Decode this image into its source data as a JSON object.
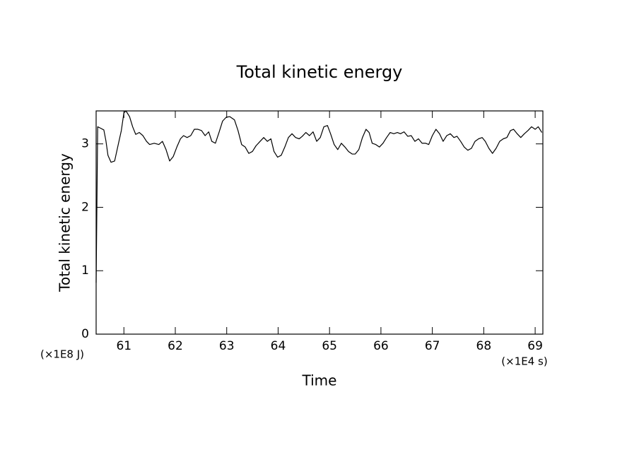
{
  "chart_data": {
    "type": "line",
    "title": "Total kinetic energy",
    "x_label": "Time",
    "y_label": "Total kinetic energy",
    "x_unit_label": "(×1E4 s)",
    "y_unit_label": "(×1E8 J)",
    "xlim": [
      60.46,
      69.15
    ],
    "ylim": [
      0,
      3.52
    ],
    "xticks": [
      61,
      62,
      63,
      64,
      65,
      66,
      67,
      68,
      69
    ],
    "yticks": [
      0,
      1,
      2,
      3
    ],
    "series": [
      {
        "color": "#000000",
        "x": [
          60.46,
          60.49,
          60.54,
          60.61,
          60.65,
          60.69,
          60.75,
          60.82,
          60.89,
          60.95,
          61.0,
          61.04,
          61.11,
          61.17,
          61.23,
          61.3,
          61.37,
          61.44,
          61.5,
          61.59,
          61.68,
          61.75,
          61.82,
          61.89,
          61.96,
          62.03,
          62.1,
          62.16,
          62.23,
          62.3,
          62.37,
          62.44,
          62.51,
          62.58,
          62.65,
          62.71,
          62.78,
          62.85,
          62.92,
          62.99,
          63.06,
          63.15,
          63.22,
          63.29,
          63.36,
          63.43,
          63.5,
          63.57,
          63.65,
          63.72,
          63.79,
          63.86,
          63.92,
          63.99,
          64.06,
          64.13,
          64.2,
          64.27,
          64.34,
          64.41,
          64.47,
          64.54,
          64.61,
          64.68,
          64.75,
          64.82,
          64.89,
          64.96,
          65.02,
          65.09,
          65.16,
          65.23,
          65.3,
          65.37,
          65.44,
          65.5,
          65.57,
          65.64,
          65.71,
          65.77,
          65.83,
          65.9,
          65.97,
          66.04,
          66.11,
          66.18,
          66.25,
          66.32,
          66.38,
          66.45,
          66.52,
          66.59,
          66.66,
          66.73,
          66.8,
          66.87,
          66.93,
          67.0,
          67.07,
          67.14,
          67.21,
          67.28,
          67.35,
          67.42,
          67.48,
          67.55,
          67.62,
          67.69,
          67.76,
          67.83,
          67.9,
          67.97,
          68.03,
          68.1,
          68.17,
          68.24,
          68.31,
          68.38,
          68.45,
          68.52,
          68.58,
          68.65,
          68.72,
          68.79,
          68.86,
          68.93,
          69.0,
          69.06,
          69.13
        ],
        "values": [
          0.81,
          3.27,
          3.25,
          3.22,
          3.05,
          2.82,
          2.71,
          2.73,
          2.99,
          3.21,
          3.49,
          3.52,
          3.43,
          3.27,
          3.15,
          3.18,
          3.13,
          3.04,
          2.99,
          3.01,
          2.99,
          3.04,
          2.91,
          2.73,
          2.8,
          2.95,
          3.08,
          3.13,
          3.1,
          3.13,
          3.23,
          3.23,
          3.21,
          3.13,
          3.19,
          3.04,
          3.01,
          3.18,
          3.36,
          3.42,
          3.43,
          3.38,
          3.21,
          2.99,
          2.95,
          2.85,
          2.88,
          2.97,
          3.04,
          3.1,
          3.04,
          3.08,
          2.88,
          2.79,
          2.82,
          2.95,
          3.1,
          3.16,
          3.1,
          3.08,
          3.12,
          3.18,
          3.13,
          3.19,
          3.04,
          3.1,
          3.27,
          3.29,
          3.16,
          2.99,
          2.91,
          3.01,
          2.95,
          2.88,
          2.84,
          2.84,
          2.91,
          3.1,
          3.23,
          3.18,
          3.01,
          2.99,
          2.95,
          3.01,
          3.1,
          3.18,
          3.16,
          3.18,
          3.16,
          3.19,
          3.12,
          3.13,
          3.04,
          3.08,
          3.01,
          3.01,
          2.99,
          3.13,
          3.23,
          3.16,
          3.04,
          3.13,
          3.16,
          3.1,
          3.12,
          3.04,
          2.95,
          2.9,
          2.93,
          3.04,
          3.08,
          3.1,
          3.04,
          2.93,
          2.85,
          2.93,
          3.04,
          3.08,
          3.1,
          3.21,
          3.23,
          3.16,
          3.1,
          3.16,
          3.21,
          3.27,
          3.23,
          3.27,
          3.18
        ]
      }
    ]
  }
}
